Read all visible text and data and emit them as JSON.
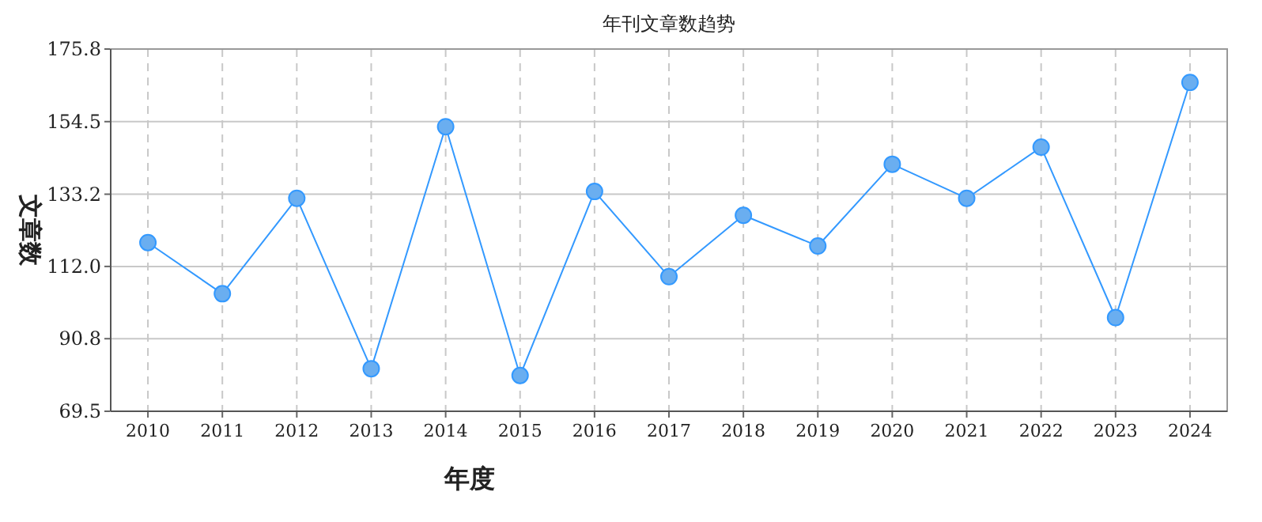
{
  "chart_data": {
    "type": "line",
    "title": "年刊文章数趋势",
    "xlabel": "年度",
    "ylabel": "文章数",
    "categories": [
      "2010",
      "2011",
      "2012",
      "2013",
      "2014",
      "2015",
      "2016",
      "2017",
      "2018",
      "2019",
      "2020",
      "2021",
      "2022",
      "2023",
      "2024"
    ],
    "series": [
      {
        "color": "#3399ff",
        "values": [
          119,
          104,
          132,
          82,
          153,
          80,
          134,
          109,
          127,
          118,
          142,
          132,
          147,
          97,
          166
        ]
      }
    ],
    "ylim": [
      69.5,
      175.8
    ],
    "yticks": [
      69.5,
      90.8,
      {
        "value": 112.0,
        "label": "112.0"
      },
      133.2,
      154.5,
      175.8
    ],
    "grid": true,
    "marker": "circle"
  }
}
